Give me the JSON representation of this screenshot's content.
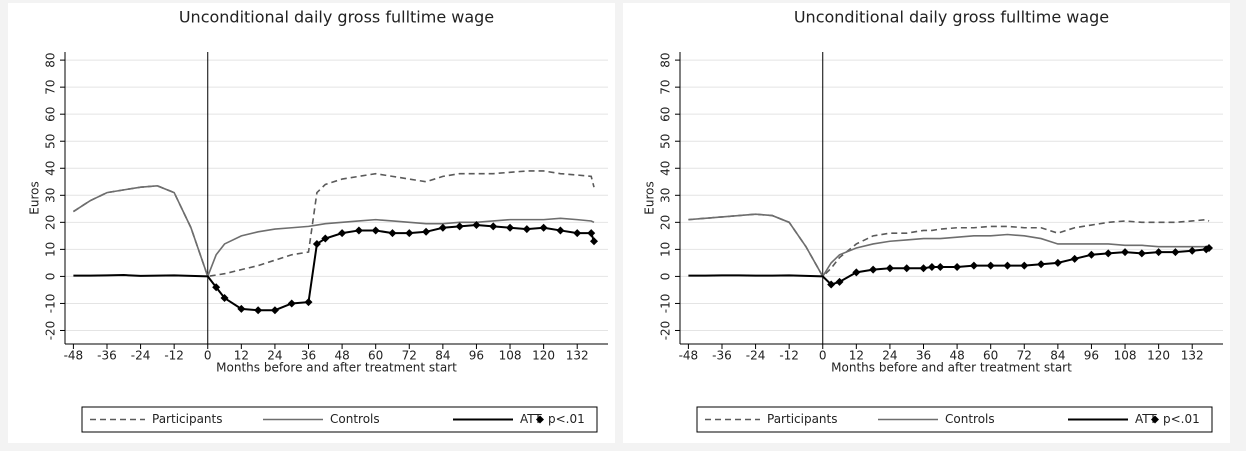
{
  "chart_data": [
    {
      "type": "line",
      "title": "Unconditional daily gross fulltime wage",
      "xlabel": "Months before and after treatment start",
      "ylabel": "Euros",
      "x": [
        -48,
        -42,
        -36,
        -30,
        -24,
        -18,
        -12,
        -6,
        0,
        3,
        6,
        12,
        18,
        24,
        30,
        36,
        39,
        42,
        48,
        54,
        60,
        66,
        72,
        78,
        84,
        90,
        96,
        102,
        108,
        114,
        120,
        126,
        132,
        137,
        138
      ],
      "series": [
        {
          "name": "Participants",
          "color": "#5a5a5a",
          "style": "dash",
          "values": [
            24,
            28,
            31,
            32,
            33,
            33.5,
            31,
            18,
            0,
            0.5,
            1,
            2.5,
            4,
            6,
            8,
            9,
            31,
            34,
            36,
            37,
            38,
            37,
            36,
            35,
            37,
            38,
            38,
            38,
            38.5,
            39,
            39,
            38,
            37.5,
            37,
            33
          ]
        },
        {
          "name": "Controls",
          "color": "#6e6e6e",
          "style": "solid",
          "values": [
            24,
            28,
            31,
            32,
            33,
            33.5,
            31,
            18,
            0,
            8,
            12,
            15,
            16.5,
            17.5,
            18,
            18.5,
            19,
            19.5,
            20,
            20.5,
            21,
            20.5,
            20,
            19.5,
            19.5,
            20,
            20,
            20.5,
            21,
            21,
            21,
            21.5,
            21,
            20.5,
            20
          ]
        },
        {
          "name": "ATT",
          "color": "#000000",
          "style": "solid",
          "values": [
            0.3,
            0.3,
            0.4,
            0.5,
            0.2,
            0.3,
            0.4,
            0.2,
            0,
            -4,
            -8,
            -12,
            -12.5,
            -12.5,
            -10,
            -9.5,
            12,
            14,
            16,
            17,
            17,
            16,
            16,
            16.5,
            18,
            18.5,
            19,
            18.5,
            18,
            17.5,
            18,
            17,
            16,
            16,
            13
          ]
        },
        {
          "name": "p<.01",
          "color": "#000000",
          "style": "marker",
          "values": [
            null,
            null,
            null,
            null,
            null,
            null,
            null,
            null,
            null,
            -4,
            -8,
            -12,
            -12.5,
            -12.5,
            -10,
            -9.5,
            12,
            14,
            16,
            17,
            17,
            16,
            16,
            16.5,
            18,
            18.5,
            19,
            18.5,
            18,
            17.5,
            18,
            17,
            16,
            16,
            13
          ]
        }
      ],
      "xlim": [
        -51,
        143
      ],
      "ylim": [
        -25,
        83
      ],
      "xticks": [
        -48,
        -36,
        -24,
        -12,
        0,
        12,
        24,
        36,
        48,
        60,
        72,
        84,
        96,
        108,
        120,
        132
      ],
      "yticks": [
        -20,
        -10,
        0,
        10,
        20,
        30,
        40,
        50,
        60,
        70,
        80
      ],
      "grid": true,
      "xline": 0,
      "legend": "bottom"
    },
    {
      "type": "line",
      "title": "Unconditional daily gross fulltime wage",
      "xlabel": "Months before and after treatment start",
      "ylabel": "Euros",
      "x": [
        -48,
        -42,
        -36,
        -30,
        -24,
        -18,
        -12,
        -6,
        0,
        3,
        6,
        12,
        18,
        24,
        30,
        36,
        39,
        42,
        48,
        54,
        60,
        66,
        72,
        78,
        84,
        90,
        96,
        102,
        108,
        114,
        120,
        126,
        132,
        137,
        138
      ],
      "series": [
        {
          "name": "Participants",
          "color": "#5a5a5a",
          "style": "dash",
          "values": [
            21,
            21.5,
            22,
            22.5,
            23,
            22.5,
            20,
            11,
            0,
            3,
            7,
            12,
            15,
            16,
            16,
            17,
            17,
            17.5,
            18,
            18,
            18.5,
            18.5,
            18,
            18,
            16,
            18,
            19,
            20,
            20.5,
            20,
            20,
            20,
            20.5,
            21,
            20.5
          ]
        },
        {
          "name": "Controls",
          "color": "#6e6e6e",
          "style": "solid",
          "values": [
            21,
            21.5,
            22,
            22.5,
            23,
            22.5,
            20,
            11,
            0,
            5,
            8,
            10.5,
            12,
            13,
            13.5,
            14,
            14,
            14,
            14.5,
            15,
            15,
            15.5,
            15,
            14,
            12,
            12,
            12,
            12,
            11.5,
            11.5,
            11,
            11,
            11,
            11,
            10.5
          ]
        },
        {
          "name": "ATT",
          "color": "#000000",
          "style": "solid",
          "values": [
            0.3,
            0.3,
            0.4,
            0.4,
            0.3,
            0.3,
            0.4,
            0.2,
            0,
            -3,
            -2,
            1.5,
            2.5,
            3,
            3,
            3,
            3.5,
            3.5,
            3.5,
            4,
            4,
            4,
            4,
            4.5,
            5,
            6.5,
            8,
            8.5,
            9,
            8.5,
            9,
            9,
            9.5,
            10,
            10.5
          ]
        },
        {
          "name": "p<.01",
          "color": "#000000",
          "style": "marker",
          "values": [
            null,
            null,
            null,
            null,
            null,
            null,
            null,
            null,
            null,
            -3,
            -2,
            1.5,
            2.5,
            3,
            3,
            3,
            3.5,
            3.5,
            3.5,
            4,
            4,
            4,
            4,
            4.5,
            5,
            6.5,
            8,
            8.5,
            9,
            8.5,
            9,
            9,
            9.5,
            10,
            10.5
          ]
        }
      ],
      "xlim": [
        -51,
        143
      ],
      "ylim": [
        -25,
        83
      ],
      "xticks": [
        -48,
        -36,
        -24,
        -12,
        0,
        12,
        24,
        36,
        48,
        60,
        72,
        84,
        96,
        108,
        120,
        132
      ],
      "yticks": [
        -20,
        -10,
        0,
        10,
        20,
        30,
        40,
        50,
        60,
        70,
        80
      ],
      "grid": true,
      "xline": 0,
      "legend": "bottom"
    }
  ]
}
